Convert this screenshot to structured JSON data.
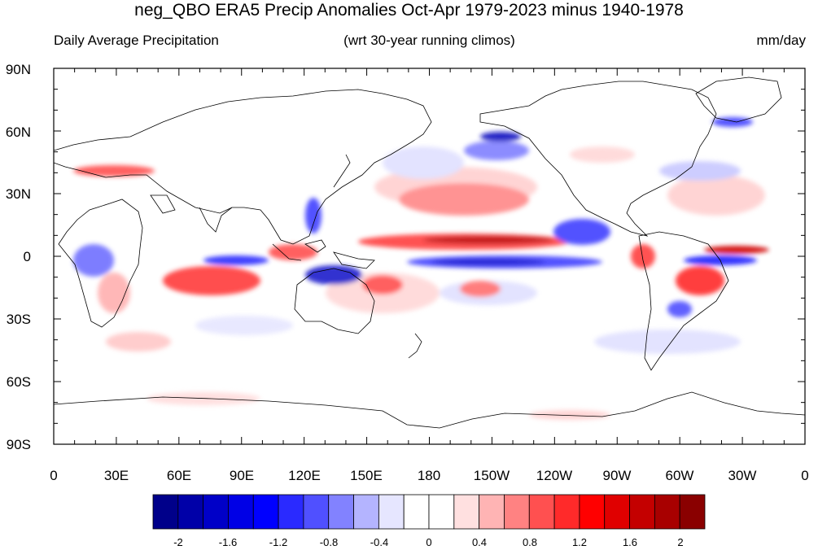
{
  "title": "neg_QBO ERA5 Precip Anomalies Oct-Apr 1979-2023 minus 1940-1978",
  "subtitle_left": "Daily Average Precipitation",
  "subtitle_center": "(wrt 30-year running climos)",
  "subtitle_right": "mm/day",
  "lat_labels": [
    "90N",
    "60N",
    "30N",
    "0",
    "30S",
    "60S",
    "90S"
  ],
  "lon_labels": [
    "0",
    "30E",
    "60E",
    "90E",
    "120E",
    "150E",
    "180",
    "150W",
    "120W",
    "90W",
    "60W",
    "30W",
    "0"
  ],
  "colorbar": {
    "labels": [
      "-2",
      "-1.6",
      "-1.2",
      "-0.8",
      "-0.4",
      "0",
      "0.4",
      "0.8",
      "1.2",
      "1.6",
      "2"
    ],
    "colors": [
      "#00008a",
      "#0000a8",
      "#0000c8",
      "#0000e6",
      "#0000ff",
      "#2a2aff",
      "#5050ff",
      "#8282ff",
      "#b4b4ff",
      "#e6e6ff",
      "#ffffff",
      "#ffffff",
      "#ffe0e0",
      "#ffb4b4",
      "#ff8282",
      "#ff5050",
      "#ff2a2a",
      "#ff0000",
      "#e00000",
      "#c40000",
      "#a80000",
      "#8a0000"
    ]
  },
  "colors": {
    "frame": "#000000",
    "coast": "#000000"
  }
}
